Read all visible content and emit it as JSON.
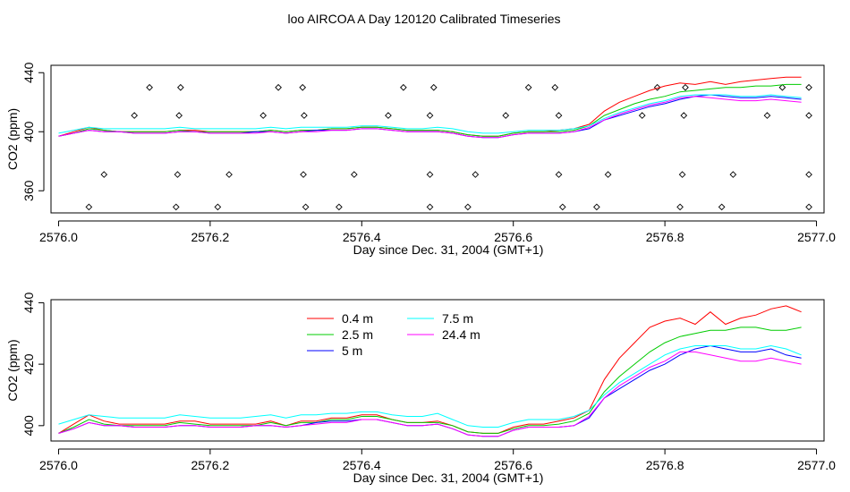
{
  "page": {
    "title": "loo AIRCOA A  Day 120120  Calibrated Timeseries"
  },
  "chart_data": [
    {
      "type": "line",
      "title": "",
      "xlabel": "Day since Dec. 31, 2004 (GMT+1)",
      "ylabel": "CO2 (ppm)",
      "xlim": [
        2575.99,
        2577.01
      ],
      "ylim": [
        345,
        445
      ],
      "xticks": [
        2576.0,
        2576.2,
        2576.4,
        2576.6,
        2576.8,
        2577.0
      ],
      "xtick_labels": [
        "2576.0",
        "2576.2",
        "2576.4",
        "2576.6",
        "2576.8",
        "2577.0"
      ],
      "yticks": [
        360,
        400,
        440
      ],
      "ytick_labels": [
        "360",
        "400",
        "440"
      ],
      "legend": "none",
      "grid": false,
      "x": [
        2576.0,
        2576.02,
        2576.04,
        2576.06,
        2576.08,
        2576.1,
        2576.12,
        2576.14,
        2576.16,
        2576.18,
        2576.2,
        2576.22,
        2576.24,
        2576.26,
        2576.28,
        2576.3,
        2576.32,
        2576.34,
        2576.36,
        2576.38,
        2576.4,
        2576.42,
        2576.44,
        2576.46,
        2576.48,
        2576.5,
        2576.52,
        2576.54,
        2576.56,
        2576.58,
        2576.6,
        2576.62,
        2576.64,
        2576.66,
        2576.68,
        2576.7,
        2576.72,
        2576.74,
        2576.76,
        2576.78,
        2576.8,
        2576.82,
        2576.84,
        2576.86,
        2576.88,
        2576.9,
        2576.92,
        2576.94,
        2576.96,
        2576.98
      ],
      "series": [
        {
          "color": "#ff0000",
          "values": [
            397,
            400,
            403,
            401,
            400,
            400,
            400,
            400,
            401,
            401,
            400,
            400,
            400,
            400,
            401,
            400,
            401,
            401,
            402,
            402,
            403,
            403,
            402,
            401,
            401,
            401,
            400,
            398,
            397,
            397,
            399,
            400,
            400,
            401,
            402,
            405,
            414,
            420,
            424,
            428,
            431,
            433,
            432,
            434,
            432,
            434,
            435,
            436,
            437,
            437
          ]
        },
        {
          "color": "#00cc00",
          "values": [
            397,
            399,
            402,
            401,
            400,
            400,
            400,
            400,
            401,
            400,
            400,
            400,
            400,
            400,
            401,
            400,
            401,
            401,
            402,
            402,
            403,
            403,
            402,
            401,
            401,
            401,
            400,
            398,
            397,
            397,
            399,
            400,
            400,
            400,
            401,
            404,
            411,
            415,
            419,
            422,
            424,
            427,
            428,
            429,
            430,
            430,
            431,
            431,
            432,
            432
          ]
        },
        {
          "color": "#0000ff",
          "values": [
            397,
            399,
            401,
            400,
            400,
            399,
            399,
            399,
            400,
            400,
            399,
            399,
            399,
            400,
            400,
            399,
            400,
            401,
            401,
            401,
            402,
            402,
            401,
            400,
            400,
            400,
            399,
            397,
            396,
            396,
            398,
            399,
            399,
            399,
            400,
            402,
            408,
            411,
            414,
            417,
            419,
            422,
            424,
            425,
            424,
            423,
            423,
            424,
            423,
            422
          ]
        },
        {
          "color": "#00ffff",
          "values": [
            399,
            401,
            403,
            402,
            402,
            402,
            402,
            402,
            403,
            402,
            402,
            402,
            402,
            402,
            403,
            402,
            403,
            403,
            403,
            403,
            404,
            404,
            403,
            402,
            402,
            403,
            402,
            400,
            399,
            399,
            400,
            401,
            401,
            401,
            402,
            404,
            409,
            413,
            416,
            419,
            421,
            424,
            425,
            425,
            425,
            424,
            424,
            425,
            424,
            423
          ]
        },
        {
          "color": "#ff00ff",
          "values": [
            397,
            399,
            401,
            400,
            400,
            399,
            399,
            399,
            400,
            400,
            399,
            399,
            399,
            399,
            400,
            399,
            400,
            400,
            401,
            401,
            402,
            402,
            401,
            400,
            400,
            400,
            399,
            397,
            396,
            396,
            398,
            399,
            399,
            399,
            400,
            403,
            408,
            412,
            415,
            418,
            420,
            423,
            424,
            423,
            422,
            421,
            421,
            422,
            421,
            420
          ]
        }
      ],
      "annotations": {
        "marker": "open-diamond",
        "points": [
          [
            2576.04,
            349
          ],
          [
            2576.06,
            371
          ],
          [
            2576.1,
            411
          ],
          [
            2576.12,
            430
          ],
          [
            2576.155,
            349
          ],
          [
            2576.157,
            371
          ],
          [
            2576.159,
            411
          ],
          [
            2576.161,
            430
          ],
          [
            2576.21,
            349
          ],
          [
            2576.225,
            371
          ],
          [
            2576.27,
            411
          ],
          [
            2576.29,
            430
          ],
          [
            2576.323,
            371
          ],
          [
            2576.324,
            411
          ],
          [
            2576.322,
            430
          ],
          [
            2576.326,
            349
          ],
          [
            2576.37,
            349
          ],
          [
            2576.39,
            371
          ],
          [
            2576.435,
            411
          ],
          [
            2576.455,
            430
          ],
          [
            2576.49,
            349
          ],
          [
            2576.49,
            371
          ],
          [
            2576.49,
            411
          ],
          [
            2576.495,
            430
          ],
          [
            2576.54,
            349
          ],
          [
            2576.55,
            371
          ],
          [
            2576.59,
            411
          ],
          [
            2576.62,
            430
          ],
          [
            2576.655,
            430
          ],
          [
            2576.66,
            411
          ],
          [
            2576.66,
            371
          ],
          [
            2576.665,
            349
          ],
          [
            2576.71,
            349
          ],
          [
            2576.725,
            371
          ],
          [
            2576.77,
            411
          ],
          [
            2576.79,
            430
          ],
          [
            2576.82,
            349
          ],
          [
            2576.823,
            371
          ],
          [
            2576.825,
            411
          ],
          [
            2576.827,
            430
          ],
          [
            2576.875,
            349
          ],
          [
            2576.89,
            371
          ],
          [
            2576.935,
            411
          ],
          [
            2576.955,
            430
          ],
          [
            2576.99,
            349
          ],
          [
            2576.99,
            371
          ],
          [
            2576.99,
            411
          ],
          [
            2576.99,
            430
          ]
        ]
      }
    },
    {
      "type": "line",
      "title": "",
      "xlabel": "Day since Dec. 31, 2004 (GMT+1)",
      "ylabel": "CO2 (ppm)",
      "xlim": [
        2575.99,
        2577.01
      ],
      "ylim": [
        395,
        441
      ],
      "xticks": [
        2576.0,
        2576.2,
        2576.4,
        2576.6,
        2576.8,
        2577.0
      ],
      "xtick_labels": [
        "2576.0",
        "2576.2",
        "2576.4",
        "2576.6",
        "2576.8",
        "2577.0"
      ],
      "yticks": [
        400,
        420,
        440
      ],
      "ytick_labels": [
        "400",
        "420",
        "440"
      ],
      "legend": "top-center",
      "grid": false,
      "x": [
        2576.0,
        2576.02,
        2576.04,
        2576.06,
        2576.08,
        2576.1,
        2576.12,
        2576.14,
        2576.16,
        2576.18,
        2576.2,
        2576.22,
        2576.24,
        2576.26,
        2576.28,
        2576.3,
        2576.32,
        2576.34,
        2576.36,
        2576.38,
        2576.4,
        2576.42,
        2576.44,
        2576.46,
        2576.48,
        2576.5,
        2576.52,
        2576.54,
        2576.56,
        2576.58,
        2576.6,
        2576.62,
        2576.64,
        2576.66,
        2576.68,
        2576.7,
        2576.72,
        2576.74,
        2576.76,
        2576.78,
        2576.8,
        2576.82,
        2576.84,
        2576.86,
        2576.88,
        2576.9,
        2576.92,
        2576.94,
        2576.96,
        2576.98
      ],
      "series": [
        {
          "name": "0.4 m",
          "color": "#ff0000",
          "values": [
            397.5,
            400.5,
            403.5,
            401.5,
            400.5,
            400.5,
            400.5,
            400.5,
            401.5,
            401.5,
            400.5,
            400.5,
            400.5,
            400.5,
            401.5,
            400,
            401.5,
            401.5,
            402.5,
            402.5,
            403.5,
            403.5,
            402,
            401,
            401,
            401.5,
            400,
            398,
            397.5,
            397.5,
            399.5,
            400.5,
            400.5,
            401.5,
            402.5,
            405,
            415,
            422,
            427,
            432,
            434,
            435,
            433,
            437,
            433,
            435,
            436,
            438,
            439,
            437
          ]
        },
        {
          "name": "2.5 m",
          "color": "#00cc00",
          "values": [
            397.5,
            399.5,
            402,
            400.5,
            400,
            400,
            400,
            400,
            401,
            400.5,
            400,
            400,
            400,
            400,
            401,
            400,
            401,
            401,
            402,
            402,
            403,
            403,
            402,
            401,
            401,
            401,
            400,
            398,
            397.5,
            397.5,
            399,
            400,
            400,
            400.5,
            401.5,
            404,
            411,
            416,
            420,
            424,
            427,
            429,
            430,
            431,
            431,
            432,
            432,
            431,
            431,
            432
          ]
        },
        {
          "name": "5 m",
          "color": "#0000ff",
          "values": [
            397.5,
            399,
            401,
            400,
            400,
            399.5,
            399.5,
            399.5,
            400,
            400,
            399.5,
            399.5,
            399.5,
            400,
            400,
            399.5,
            400,
            401,
            401.5,
            401.5,
            402,
            402,
            401,
            400,
            400,
            400.5,
            399,
            397,
            396.5,
            396.5,
            398.5,
            399.5,
            399.5,
            399.5,
            400,
            402.5,
            409,
            412,
            415,
            418,
            420,
            423,
            425,
            426,
            425,
            424,
            424,
            425,
            423,
            422
          ]
        },
        {
          "name": "7.5 m",
          "color": "#00ffff",
          "values": [
            400.5,
            402,
            403.5,
            403,
            402.5,
            402.5,
            402.5,
            402.5,
            403.5,
            403,
            402.5,
            402.5,
            402.5,
            403,
            403.5,
            402.5,
            403.5,
            403.5,
            404,
            404,
            404.5,
            404.5,
            403.5,
            403,
            403,
            404,
            402,
            400,
            399.5,
            399.5,
            401,
            402,
            402,
            402,
            403,
            405,
            410,
            414,
            417,
            420,
            423,
            425,
            426,
            426,
            426,
            425,
            425,
            426,
            425,
            423
          ]
        },
        {
          "name": "24.4 m",
          "color": "#ff00ff",
          "values": [
            397.5,
            399,
            401,
            400,
            400,
            399.5,
            399.5,
            399.5,
            400,
            400,
            399.5,
            399.5,
            399.5,
            400,
            400,
            399.5,
            400,
            400.5,
            401,
            401,
            402,
            402,
            401,
            400,
            400,
            400.5,
            399,
            397,
            396.5,
            396.5,
            398.5,
            399.5,
            399.5,
            399.5,
            400,
            403,
            409,
            413,
            416,
            419,
            421,
            424,
            424,
            423,
            422,
            421,
            421,
            422,
            421,
            420
          ]
        }
      ]
    }
  ]
}
